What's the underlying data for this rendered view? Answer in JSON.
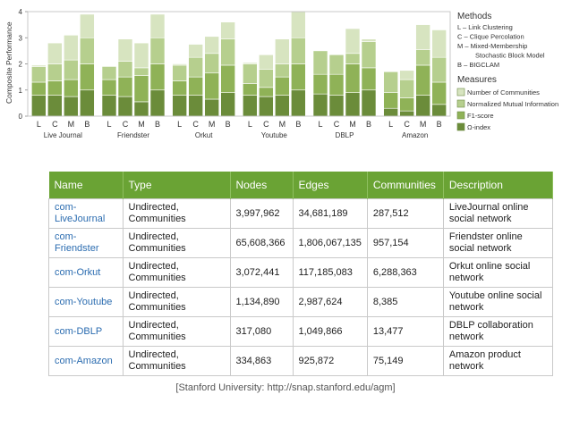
{
  "chart_data": {
    "type": "bar",
    "stacked": true,
    "ylabel": "Composite Performance",
    "ylim": [
      0,
      4
    ],
    "yticks": [
      "0",
      "1",
      "2",
      "3",
      "4"
    ],
    "datasets": [
      "Live Journal",
      "Friendster",
      "Orkut",
      "Youtube",
      "DBLP",
      "Amazon"
    ],
    "methods": [
      "L",
      "C",
      "M",
      "B"
    ],
    "series": [
      {
        "name": "Ω-index",
        "color": "#6b8c3a",
        "values": [
          [
            0.8,
            0.8,
            0.75,
            1.0
          ],
          [
            0.8,
            0.75,
            0.55,
            1.0
          ],
          [
            0.8,
            0.8,
            0.65,
            0.9
          ],
          [
            0.8,
            0.75,
            0.8,
            1.0
          ],
          [
            0.85,
            0.8,
            0.9,
            1.0
          ],
          [
            0.3,
            0.2,
            0.8,
            0.45
          ]
        ]
      },
      {
        "name": "F1-score",
        "color": "#8fb257",
        "values": [
          [
            0.5,
            0.55,
            0.65,
            1.0
          ],
          [
            0.6,
            0.75,
            1.0,
            1.0
          ],
          [
            0.55,
            0.7,
            1.0,
            1.05
          ],
          [
            0.45,
            0.35,
            0.7,
            1.0
          ],
          [
            0.75,
            0.8,
            1.1,
            0.85
          ],
          [
            0.6,
            0.5,
            1.15,
            0.85
          ]
        ]
      },
      {
        "name": "Normalized Mutual Information",
        "color": "#b6cf8e",
        "values": [
          [
            0.6,
            0.65,
            0.75,
            1.0
          ],
          [
            0.5,
            0.6,
            0.3,
            1.0
          ],
          [
            0.6,
            0.75,
            0.75,
            1.0
          ],
          [
            0.75,
            0.7,
            0.5,
            1.0
          ],
          [
            0.9,
            0.75,
            0.4,
            1.0
          ],
          [
            0.8,
            0.7,
            0.6,
            0.95
          ]
        ]
      },
      {
        "name": "Number of Communities",
        "color": "#d7e4c0",
        "values": [
          [
            0.05,
            0.8,
            0.95,
            0.9
          ],
          [
            0.0,
            0.85,
            0.95,
            0.9
          ],
          [
            0.05,
            0.5,
            0.65,
            0.65
          ],
          [
            0.05,
            0.55,
            0.95,
            1.0
          ],
          [
            0.0,
            0.0,
            0.95,
            0.1
          ],
          [
            0.0,
            0.35,
            0.95,
            1.05
          ]
        ]
      }
    ],
    "legend": {
      "methods_title": "Methods",
      "methods": [
        "L – Link Clustering",
        "C – Clique Percolation",
        "M – Mixed-Membership",
        "Stochastic Block Model",
        "B – BIGCLAM"
      ],
      "measures_title": "Measures",
      "placement": "right"
    }
  },
  "table": {
    "headers": [
      "Name",
      "Type",
      "Nodes",
      "Edges",
      "Communities",
      "Description"
    ],
    "rows": [
      {
        "name": [
          "com-",
          "LiveJournal"
        ],
        "type": [
          "Undirected,",
          "Communities"
        ],
        "nodes": "3,997,962",
        "edges": "34,681,189",
        "communities": "287,512",
        "desc": [
          "LiveJournal online",
          "social network"
        ]
      },
      {
        "name": [
          "com-",
          "Friendster"
        ],
        "type": [
          "Undirected,",
          "Communities"
        ],
        "nodes": "65,608,366",
        "edges": "1,806,067,135",
        "communities": "957,154",
        "desc": [
          "Friendster online",
          "social network"
        ]
      },
      {
        "name": [
          "com-Orkut",
          ""
        ],
        "type": [
          "Undirected,",
          "Communities"
        ],
        "nodes": "3,072,441",
        "edges": "117,185,083",
        "communities": "6,288,363",
        "desc": [
          "Orkut online social",
          "network"
        ]
      },
      {
        "name": [
          "com-Youtube",
          ""
        ],
        "type": [
          "Undirected,",
          "Communities"
        ],
        "nodes": "1,134,890",
        "edges": "2,987,624",
        "communities": "8,385",
        "desc": [
          "Youtube online social",
          "network"
        ]
      },
      {
        "name": [
          "com-DBLP",
          ""
        ],
        "type": [
          "Undirected,",
          "Communities"
        ],
        "nodes": "317,080",
        "edges": "1,049,866",
        "communities": "13,477",
        "desc": [
          "DBLP collaboration",
          "network"
        ]
      },
      {
        "name": [
          "com-Amazon",
          ""
        ],
        "type": [
          "Undirected,",
          "Communities"
        ],
        "nodes": "334,863",
        "edges": "925,872",
        "communities": "75,149",
        "desc": [
          "Amazon product",
          "network"
        ]
      }
    ]
  },
  "caption": "[Stanford University: http://snap.stanford.edu/agm]"
}
